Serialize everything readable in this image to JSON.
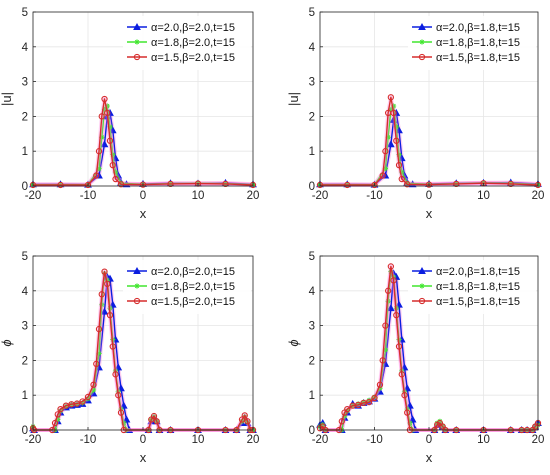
{
  "figure": {
    "panels": [
      "top-left",
      "top-right",
      "bottom-left",
      "bottom-right"
    ]
  },
  "colors": {
    "alpha2": "#0b1ee0",
    "alpha18": "#41e62f",
    "alpha15": "#d62d2d",
    "halo": "#ff7ad9",
    "grid": "#e6e6e6",
    "axis": "#262626"
  },
  "chart_data": [
    {
      "type": "line",
      "panel": "top-left",
      "ylabel": "|u|",
      "xlabel": "x",
      "xlim": [
        -20,
        20
      ],
      "ylim": [
        0,
        5
      ],
      "xticks": [
        "-20",
        "-10",
        "0",
        "10",
        "20"
      ],
      "yticks": [
        "0",
        "1",
        "2",
        "3",
        "4",
        "5"
      ],
      "grid": true,
      "legend_position": "top-right",
      "series": [
        {
          "name": "α=2.0,β=2.0,t=15",
          "marker": "triangle",
          "color_key": "alpha2",
          "x": [
            -20,
            -15,
            -10,
            -8,
            -7,
            -6.5,
            -6,
            -5.5,
            -5,
            -4.5,
            -4,
            -3,
            0,
            5,
            10,
            15,
            20
          ],
          "y": [
            0.05,
            0.05,
            0.04,
            0.3,
            1.2,
            2.0,
            2.1,
            1.6,
            0.8,
            0.3,
            0.1,
            0.05,
            0.06,
            0.08,
            0.07,
            0.09,
            0.05
          ]
        },
        {
          "name": "α=1.8,β=2.0,t=15",
          "marker": "star",
          "color_key": "alpha18",
          "x": [
            -20,
            -15,
            -10,
            -8,
            -7.5,
            -7,
            -6.5,
            -6,
            -5.5,
            -5,
            -4,
            0,
            5,
            10,
            15,
            20
          ],
          "y": [
            0.04,
            0.04,
            0.04,
            0.5,
            1.4,
            2.2,
            2.3,
            1.7,
            0.9,
            0.4,
            0.08,
            0.05,
            0.07,
            0.08,
            0.07,
            0.04
          ]
        },
        {
          "name": "α=1.5,β=2.0,t=15",
          "marker": "circle",
          "color_key": "alpha15",
          "x": [
            -20,
            -15,
            -10,
            -8.5,
            -8,
            -7.5,
            -7,
            -6.5,
            -6,
            -5.5,
            -5,
            -4,
            0,
            5,
            10,
            15,
            20
          ],
          "y": [
            0.03,
            0.03,
            0.03,
            0.3,
            1.0,
            2.0,
            2.5,
            2.1,
            1.3,
            0.6,
            0.2,
            0.05,
            0.04,
            0.06,
            0.07,
            0.06,
            0.03
          ]
        }
      ]
    },
    {
      "type": "line",
      "panel": "top-right",
      "ylabel": "|u|",
      "xlabel": "x",
      "xlim": [
        -20,
        20
      ],
      "ylim": [
        0,
        5
      ],
      "xticks": [
        "-20",
        "-10",
        "0",
        "10",
        "20"
      ],
      "yticks": [
        "0",
        "1",
        "2",
        "3",
        "4",
        "5"
      ],
      "grid": true,
      "legend_position": "top-right",
      "series": [
        {
          "name": "α=2.0,β=1.8,t=15",
          "marker": "triangle",
          "color_key": "alpha2",
          "x": [
            -20,
            -15,
            -10,
            -8,
            -7,
            -6.5,
            -6,
            -5.5,
            -5,
            -4.5,
            -4,
            -3,
            0,
            5,
            10,
            15,
            20
          ],
          "y": [
            0.05,
            0.05,
            0.04,
            0.3,
            1.2,
            1.9,
            2.1,
            1.6,
            0.8,
            0.3,
            0.1,
            0.05,
            0.06,
            0.08,
            0.09,
            0.1,
            0.06
          ]
        },
        {
          "name": "α=1.8,β=1.8,t=15",
          "marker": "star",
          "color_key": "alpha18",
          "x": [
            -20,
            -15,
            -10,
            -8,
            -7.5,
            -7,
            -6.5,
            -6,
            -5.5,
            -5,
            -4,
            0,
            5,
            10,
            15,
            20
          ],
          "y": [
            0.04,
            0.04,
            0.04,
            0.5,
            1.4,
            2.2,
            2.3,
            1.7,
            0.9,
            0.4,
            0.08,
            0.05,
            0.07,
            0.09,
            0.08,
            0.04
          ]
        },
        {
          "name": "α=1.5,β=1.8,t=15",
          "marker": "circle",
          "color_key": "alpha15",
          "x": [
            -20,
            -15,
            -10,
            -8.5,
            -8,
            -7.5,
            -7,
            -6.5,
            -6,
            -5.5,
            -5,
            -4,
            0,
            5,
            10,
            15,
            20
          ],
          "y": [
            0.03,
            0.03,
            0.03,
            0.3,
            1.0,
            2.1,
            2.55,
            2.1,
            1.3,
            0.6,
            0.2,
            0.05,
            0.04,
            0.06,
            0.08,
            0.06,
            0.03
          ]
        }
      ]
    },
    {
      "type": "line",
      "panel": "bottom-left",
      "ylabel": "ϕ",
      "xlabel": "x",
      "xlim": [
        -20,
        20
      ],
      "ylim": [
        0,
        5
      ],
      "xticks": [
        "-20",
        "-10",
        "0",
        "10",
        "20"
      ],
      "yticks": [
        "0",
        "1",
        "2",
        "3",
        "4",
        "5"
      ],
      "grid": true,
      "legend_position": "top-right",
      "series": [
        {
          "name": "α=2.0,β=2.0,t=15",
          "marker": "triangle",
          "color_key": "alpha2",
          "x": [
            -20,
            -19.8,
            -16,
            -15.5,
            -15,
            -14,
            -13,
            -12,
            -11,
            -10,
            -9,
            -8,
            -7,
            -6.5,
            -6,
            -5.5,
            -5,
            -4.5,
            -4,
            -3.5,
            -3,
            -2.5,
            1,
            1.5,
            2,
            2.5,
            3,
            5,
            10,
            15,
            17,
            18,
            18.5,
            19,
            19.5,
            20
          ],
          "y": [
            0.05,
            0,
            0,
            0.25,
            0.5,
            0.65,
            0.7,
            0.72,
            0.75,
            0.85,
            1.05,
            1.8,
            3.4,
            4.4,
            4.35,
            3.6,
            2.6,
            1.8,
            1.2,
            0.7,
            0.3,
            0,
            0,
            0.25,
            0.35,
            0.25,
            0,
            0,
            0,
            0,
            0,
            0.2,
            0.35,
            0.2,
            0,
            0
          ]
        },
        {
          "name": "α=1.8,β=2.0,t=15",
          "marker": "star",
          "color_key": "alpha18",
          "x": [
            -20,
            -19.8,
            -16,
            -15.5,
            -15,
            -14,
            -13,
            -12,
            -11,
            -10,
            -9,
            -8,
            -7.5,
            -7,
            -6.5,
            -6,
            -5.5,
            -5,
            -4.5,
            -4,
            -3.5,
            -3,
            1,
            1.5,
            2,
            2.5,
            3,
            5,
            10,
            15,
            17,
            18,
            18.5,
            19,
            19.5,
            20
          ],
          "y": [
            0.1,
            0,
            0,
            0.3,
            0.55,
            0.68,
            0.72,
            0.74,
            0.78,
            0.9,
            1.15,
            2.2,
            3.6,
            4.5,
            4.3,
            3.5,
            2.6,
            1.7,
            1.1,
            0.6,
            0.2,
            0,
            0,
            0.3,
            0.38,
            0.25,
            0,
            0,
            0,
            0,
            0,
            0.25,
            0.38,
            0.22,
            0,
            0
          ]
        },
        {
          "name": "α=1.5,β=2.0,t=15",
          "marker": "circle",
          "color_key": "alpha15",
          "x": [
            -20,
            -19.8,
            -16.5,
            -16,
            -15.5,
            -15,
            -14,
            -13,
            -12,
            -11,
            -10,
            -9,
            -8.5,
            -8,
            -7.5,
            -7,
            -6.5,
            -6,
            -5.5,
            -5,
            -4.5,
            -4,
            -3.5,
            1,
            1.5,
            2,
            2.5,
            3,
            5,
            10,
            15,
            17,
            18,
            18.5,
            19,
            19.5,
            20
          ],
          "y": [
            0.05,
            0,
            0,
            0.2,
            0.45,
            0.6,
            0.7,
            0.74,
            0.76,
            0.82,
            0.95,
            1.3,
            1.9,
            2.9,
            3.9,
            4.55,
            4.2,
            3.3,
            2.4,
            1.6,
            1.0,
            0.5,
            0,
            0,
            0.3,
            0.4,
            0.25,
            0,
            0,
            0,
            0,
            0,
            0.3,
            0.42,
            0.25,
            0,
            0
          ]
        }
      ]
    },
    {
      "type": "line",
      "panel": "bottom-right",
      "ylabel": "ϕ",
      "xlabel": "x",
      "xlim": [
        -20,
        20
      ],
      "ylim": [
        0,
        5
      ],
      "xticks": [
        "-20",
        "-10",
        "0",
        "10",
        "20"
      ],
      "yticks": [
        "0",
        "1",
        "2",
        "3",
        "4",
        "5"
      ],
      "grid": true,
      "legend_position": "top-right",
      "series": [
        {
          "name": "α=2.0,β=1.8,t=15",
          "marker": "triangle",
          "color_key": "alpha2",
          "x": [
            -20,
            -19.5,
            -19,
            -16,
            -15.5,
            -15,
            -14,
            -13,
            -12,
            -11,
            -10,
            -9,
            -8,
            -7,
            -6.5,
            -6,
            -5.5,
            -5,
            -4.5,
            -4,
            -3.5,
            -3,
            -2.5,
            1,
            1.5,
            2,
            2.5,
            3,
            5,
            10,
            15,
            17,
            18,
            19,
            19.5,
            20
          ],
          "y": [
            0.15,
            0.2,
            0,
            0,
            0.35,
            0.5,
            0.75,
            0.7,
            0.78,
            0.82,
            0.9,
            1.1,
            1.9,
            3.5,
            4.5,
            4.4,
            3.6,
            2.6,
            1.8,
            1.2,
            0.7,
            0.3,
            0,
            0,
            0.15,
            0.2,
            0.1,
            0,
            0,
            0,
            0,
            0,
            0,
            0,
            0.1,
            0.2
          ]
        },
        {
          "name": "α=1.8,β=1.8,t=15",
          "marker": "star",
          "color_key": "alpha18",
          "x": [
            -20,
            -19.5,
            -19,
            -16,
            -15.5,
            -15,
            -14,
            -13,
            -12,
            -11,
            -10,
            -9,
            -8,
            -7.5,
            -7,
            -6.5,
            -6,
            -5.5,
            -5,
            -4.5,
            -4,
            -3.5,
            -3,
            1,
            1.5,
            2,
            2.5,
            3,
            5,
            10,
            15,
            17,
            18,
            19,
            19.5,
            20
          ],
          "y": [
            0.1,
            0.15,
            0,
            0,
            0.4,
            0.55,
            0.7,
            0.75,
            0.8,
            0.85,
            0.95,
            1.2,
            2.3,
            3.7,
            4.55,
            4.4,
            3.5,
            2.6,
            1.7,
            1.1,
            0.6,
            0.2,
            0,
            0,
            0.2,
            0.25,
            0.12,
            0,
            0,
            0,
            0,
            0,
            0,
            0,
            0.08,
            0.15
          ]
        },
        {
          "name": "α=1.5,β=1.8,t=15",
          "marker": "circle",
          "color_key": "alpha15",
          "x": [
            -20,
            -19.5,
            -19,
            -16.5,
            -16,
            -15.5,
            -15,
            -14,
            -13,
            -12,
            -11,
            -10,
            -9,
            -8.5,
            -8,
            -7.5,
            -7,
            -6.5,
            -6,
            -5.5,
            -5,
            -4.5,
            -4,
            -3.5,
            1,
            1.5,
            2,
            2.5,
            3,
            5,
            10,
            15,
            17,
            18,
            19,
            19.5,
            20
          ],
          "y": [
            0.05,
            0.1,
            0,
            0,
            0.25,
            0.5,
            0.6,
            0.7,
            0.72,
            0.78,
            0.8,
            0.92,
            1.3,
            2.0,
            3.0,
            4.0,
            4.7,
            4.3,
            3.3,
            2.4,
            1.6,
            1.0,
            0.5,
            0,
            0,
            0.15,
            0.2,
            0.1,
            0,
            0,
            0,
            0,
            0,
            0,
            0,
            0.1,
            0.2
          ]
        }
      ]
    }
  ]
}
